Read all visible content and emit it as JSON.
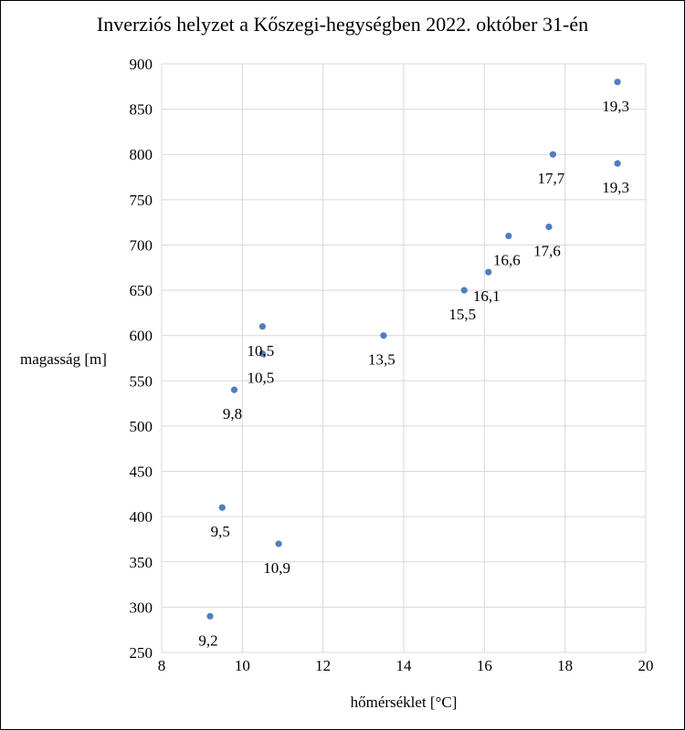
{
  "chart_data": {
    "type": "scatter",
    "title": "Inverziós helyzet a Kőszegi-hegységben  2022. október 31-én",
    "xlabel": "hőmérséklet  [°C]",
    "ylabel": "magasság  [m]",
    "xlim": [
      8,
      20
    ],
    "ylim": [
      250,
      900
    ],
    "xticks": [
      8,
      10,
      12,
      14,
      16,
      18,
      20
    ],
    "yticks": [
      250,
      300,
      350,
      400,
      450,
      500,
      550,
      600,
      650,
      700,
      750,
      800,
      850,
      900
    ],
    "grid": true,
    "marker_color": "#4F7EBD",
    "points": [
      {
        "x": 9.2,
        "y": 290,
        "label": "9,2"
      },
      {
        "x": 9.5,
        "y": 410,
        "label": "9,5"
      },
      {
        "x": 10.9,
        "y": 370,
        "label": "10,9"
      },
      {
        "x": 9.8,
        "y": 540,
        "label": "9,8"
      },
      {
        "x": 10.5,
        "y": 580,
        "label": "10,5"
      },
      {
        "x": 10.5,
        "y": 610,
        "label": "10,5"
      },
      {
        "x": 13.5,
        "y": 600,
        "label": "13,5"
      },
      {
        "x": 15.5,
        "y": 650,
        "label": "15,5"
      },
      {
        "x": 16.1,
        "y": 670,
        "label": "16,1"
      },
      {
        "x": 16.6,
        "y": 710,
        "label": "16,6"
      },
      {
        "x": 17.6,
        "y": 720,
        "label": "17,6"
      },
      {
        "x": 17.7,
        "y": 800,
        "label": "17,7"
      },
      {
        "x": 19.3,
        "y": 790,
        "label": "19,3"
      },
      {
        "x": 19.3,
        "y": 880,
        "label": "19,3"
      }
    ]
  }
}
